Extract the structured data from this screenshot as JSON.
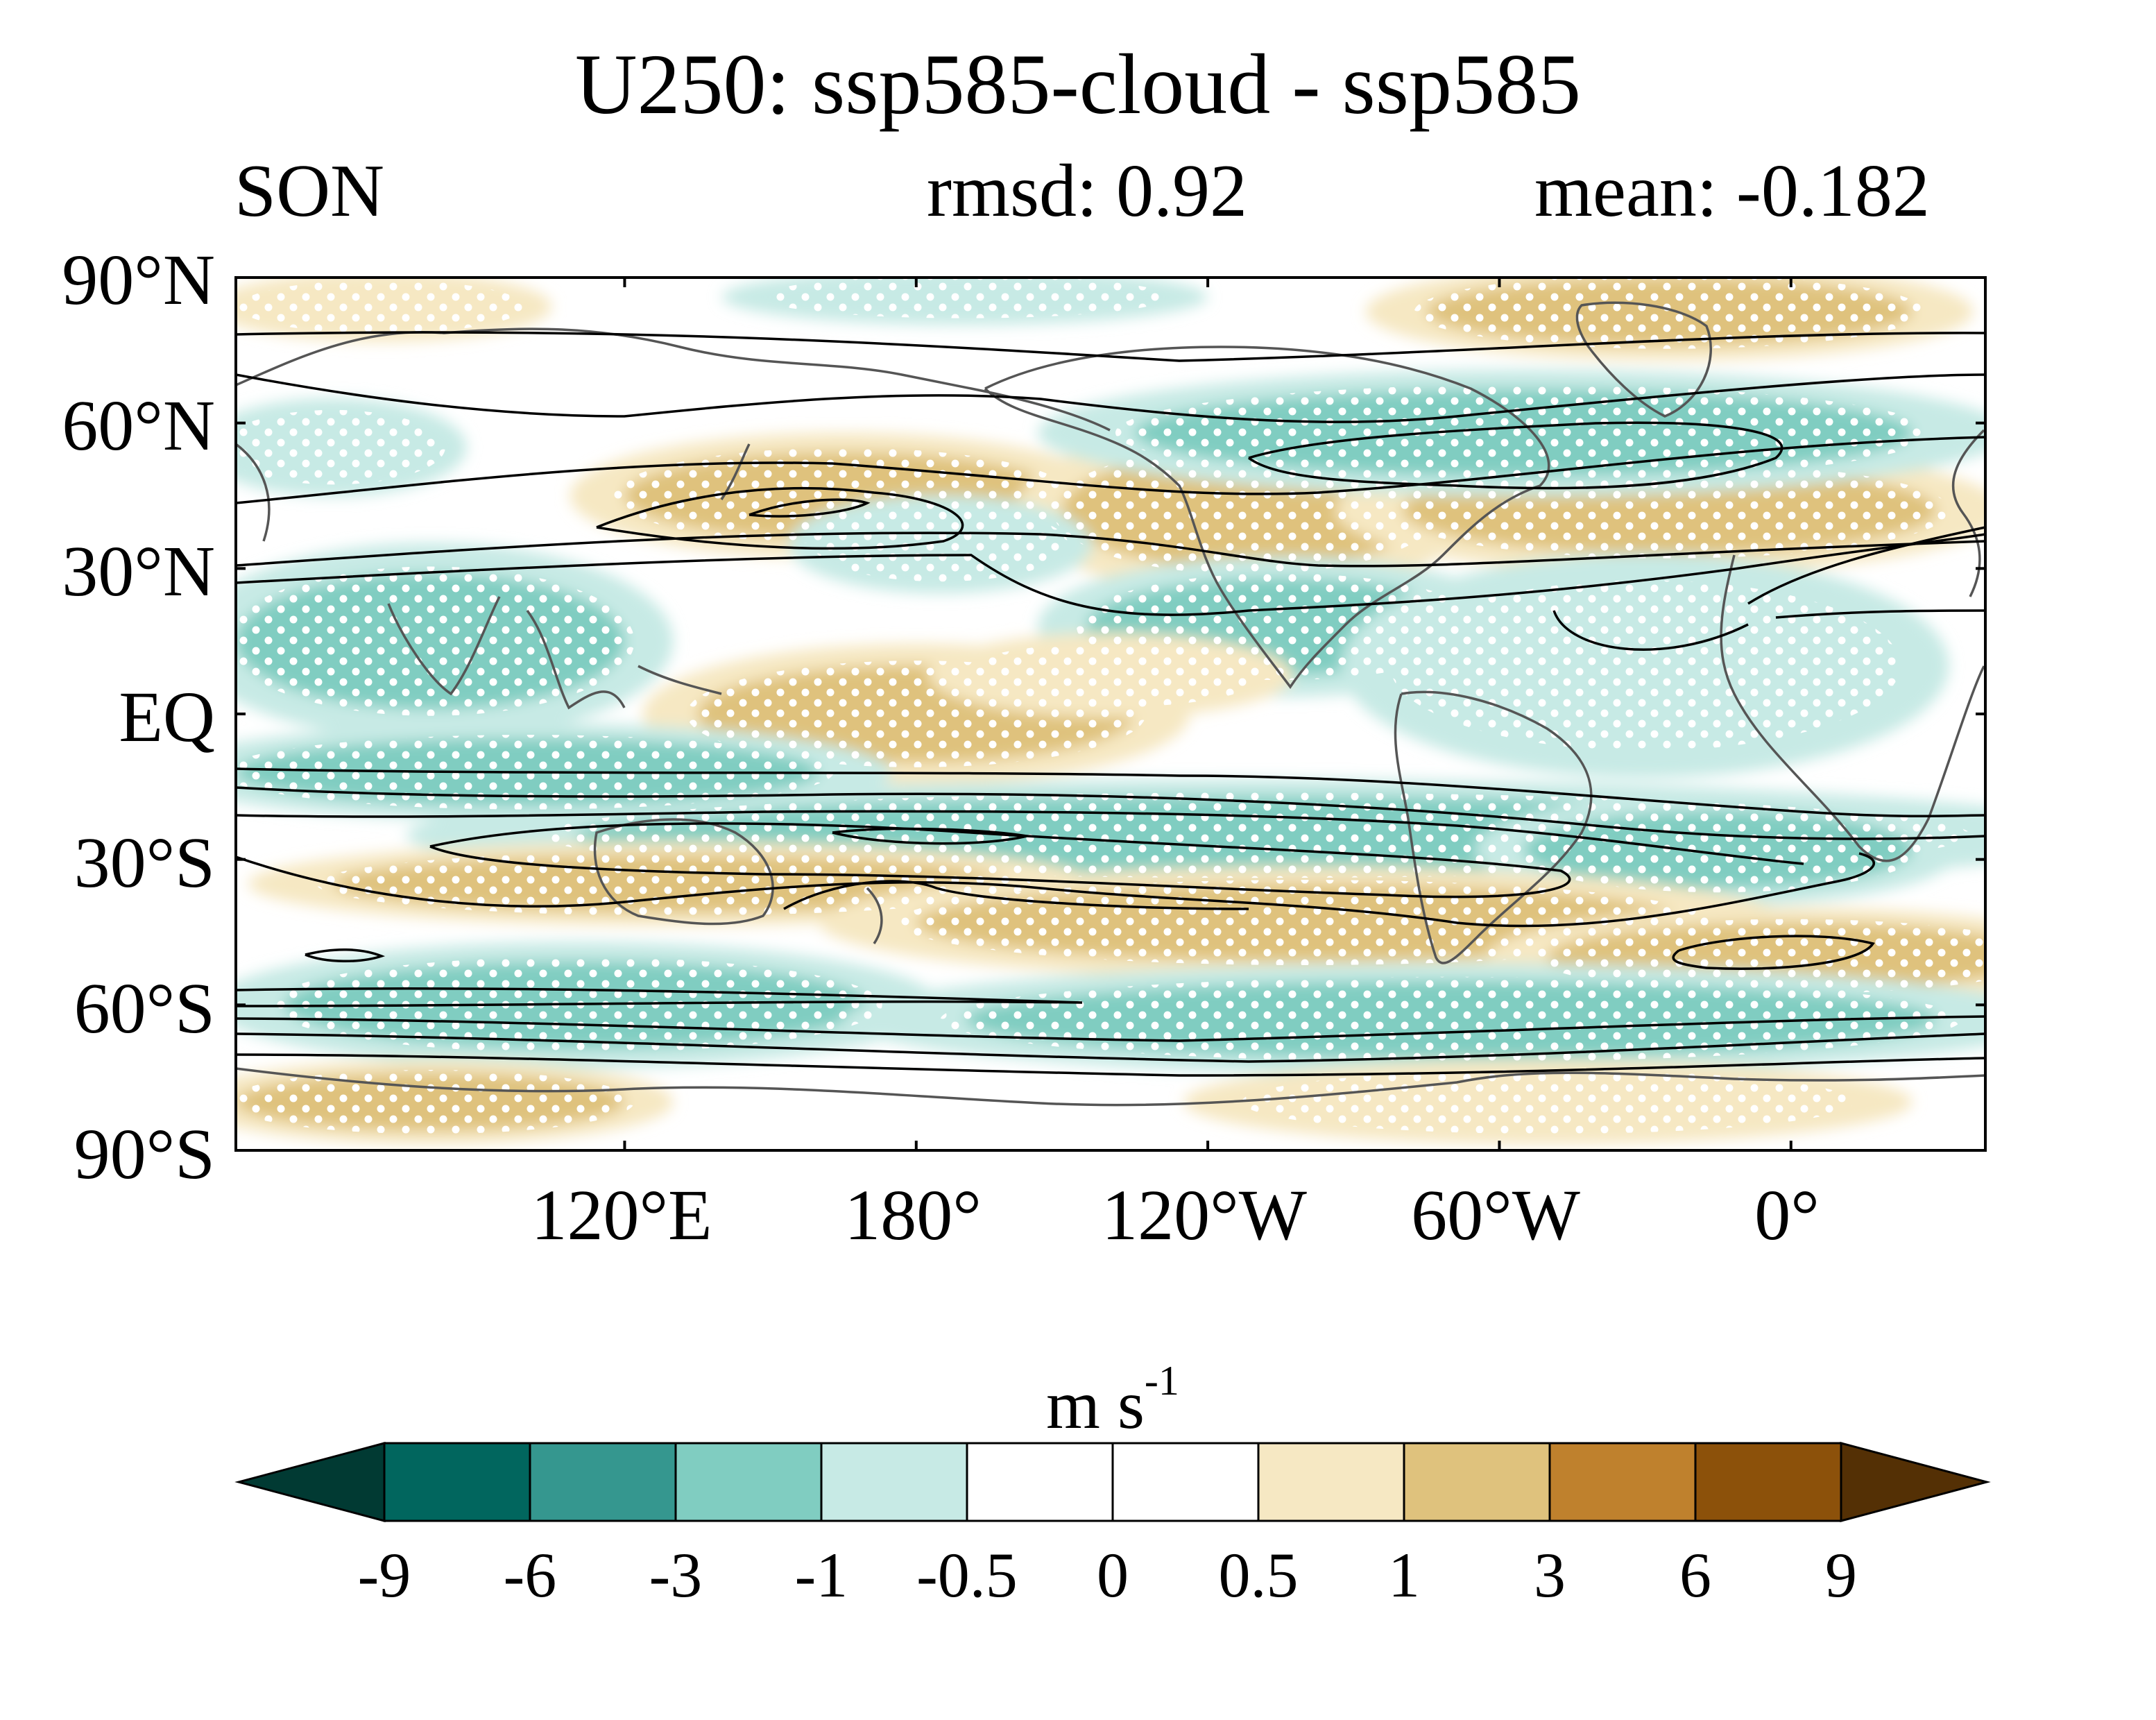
{
  "title": "U250: ssp585-cloud - ssp585",
  "season": "SON",
  "rmsd": "rmsd: 0.92",
  "mean": "mean: -0.182",
  "lat_labels": [
    "90°N",
    "60°N",
    "30°N",
    "EQ",
    "30°S",
    "60°S",
    "90°S"
  ],
  "lon_labels": [
    "120°E",
    "180°",
    "120°W",
    "60°W",
    "0°"
  ],
  "colorbar": {
    "units": "m s",
    "units_exp": "-1",
    "labels": [
      "-9",
      "-6",
      "-3",
      "-1",
      "-0.5",
      "0",
      "0.5",
      "1",
      "3",
      "6",
      "9"
    ],
    "colors": [
      "#013a33",
      "#01665e",
      "#35978f",
      "#80cdc1",
      "#c7eae5",
      "#ffffff",
      "#ffffff",
      "#f6e8c3",
      "#dfc27d",
      "#bf812d",
      "#8c510a",
      "#543005"
    ]
  },
  "chart_data": {
    "type": "map",
    "projection": "equirectangular",
    "variable": "U250",
    "difference": "ssp585-cloud - ssp585",
    "season": "SON",
    "rmsd": 0.92,
    "mean": -0.182,
    "lon_range": [
      40,
      400
    ],
    "lat_range": [
      -90,
      90
    ],
    "lon_ticks": [
      120,
      180,
      240,
      300,
      360
    ],
    "lat_ticks": [
      90,
      60,
      30,
      0,
      -30,
      -60,
      -90
    ],
    "contour_levels": [
      -9,
      -6,
      -3,
      -1,
      -0.5,
      0,
      0.5,
      1,
      3,
      6,
      9
    ],
    "stippling": "white dots indicate significance",
    "overlay": "black contours of climatological zonal wind",
    "anomalies": [
      {
        "lon": 70,
        "lat": 84,
        "rx": 28,
        "ry": 5,
        "v": 0.8
      },
      {
        "lon": 190,
        "lat": 86,
        "rx": 40,
        "ry": 4,
        "v": -0.8
      },
      {
        "lon": 335,
        "lat": 83,
        "rx": 50,
        "ry": 7,
        "v": 1.2
      },
      {
        "lon": 60,
        "lat": 55,
        "rx": 22,
        "ry": 7,
        "v": -0.8
      },
      {
        "lon": 165,
        "lat": 45,
        "rx": 45,
        "ry": 9,
        "v": 1.5
      },
      {
        "lon": 248,
        "lat": 42,
        "rx": 38,
        "ry": 12,
        "v": 1.5
      },
      {
        "lon": 335,
        "lat": 42,
        "rx": 55,
        "ry": 9,
        "v": 1.2
      },
      {
        "lon": 305,
        "lat": 58,
        "rx": 80,
        "ry": 9,
        "v": -1.5
      },
      {
        "lon": 80,
        "lat": 15,
        "rx": 40,
        "ry": 14,
        "v": -1.5
      },
      {
        "lon": 185,
        "lat": 35,
        "rx": 25,
        "ry": 7,
        "v": -1
      },
      {
        "lon": 255,
        "lat": 18,
        "rx": 40,
        "ry": 10,
        "v": -1.5
      },
      {
        "lon": 330,
        "lat": 10,
        "rx": 50,
        "ry": 16,
        "v": -1
      },
      {
        "lon": 180,
        "lat": 0,
        "rx": 45,
        "ry": 10,
        "v": 1.2
      },
      {
        "lon": 220,
        "lat": 8,
        "rx": 30,
        "ry": 6,
        "v": 0.8
      },
      {
        "lon": 250,
        "lat": -25,
        "rx": 140,
        "ry": 8,
        "v": -2
      },
      {
        "lon": 100,
        "lat": -12,
        "rx": 60,
        "ry": 7,
        "v": -1.5
      },
      {
        "lon": 345,
        "lat": -28,
        "rx": 40,
        "ry": 8,
        "v": -1.5
      },
      {
        "lon": 130,
        "lat": -35,
        "rx": 70,
        "ry": 6,
        "v": 1.2
      },
      {
        "lon": 260,
        "lat": -43,
        "rx": 80,
        "ry": 8,
        "v": 1.5
      },
      {
        "lon": 360,
        "lat": -50,
        "rx": 50,
        "ry": 7,
        "v": 1.2
      },
      {
        "lon": 110,
        "lat": -60,
        "rx": 60,
        "ry": 9,
        "v": -1.5
      },
      {
        "lon": 290,
        "lat": -63,
        "rx": 100,
        "ry": 8,
        "v": -1.2
      },
      {
        "lon": 80,
        "lat": -80,
        "rx": 40,
        "ry": 6,
        "v": 1
      },
      {
        "lon": 310,
        "lat": -80,
        "rx": 60,
        "ry": 6,
        "v": 0.7
      }
    ]
  }
}
